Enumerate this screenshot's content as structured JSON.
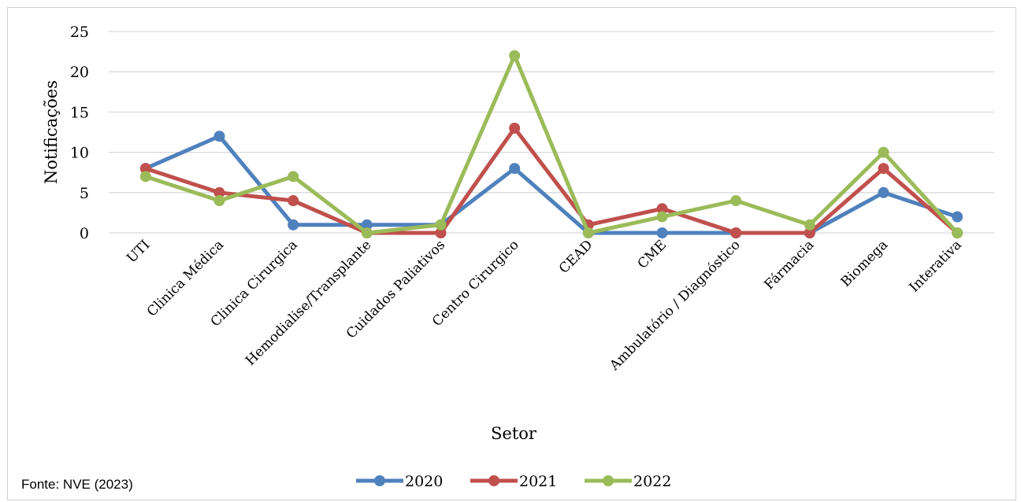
{
  "source_note": "Fonte: NVE (2023)",
  "chart_data": {
    "type": "line",
    "xlabel": "Setor",
    "ylabel": "Notificações",
    "ylim": [
      0,
      25
    ],
    "yticks": [
      0,
      5,
      10,
      15,
      20,
      25
    ],
    "grid": true,
    "legend_position": "bottom",
    "categories": [
      "UTI",
      "Clinica Médica",
      "Clinica Cirurgica",
      "Hemodialise/Transplante",
      "Cuidados Paliativos",
      "Centro Cirurgico",
      "CEAD",
      "CME",
      "Ambulatório / Diagnóstico",
      "Fármacia",
      "Biomega",
      "Interativa"
    ],
    "series": [
      {
        "name": "2020",
        "color": "#4f81bd",
        "values": [
          8,
          12,
          1,
          1,
          1,
          8,
          0,
          0,
          0,
          0,
          5,
          2
        ]
      },
      {
        "name": "2021",
        "color": "#c0504d",
        "values": [
          8,
          5,
          4,
          0,
          0,
          13,
          1,
          3,
          0,
          0,
          8,
          0
        ]
      },
      {
        "name": "2022",
        "color": "#9bbb59",
        "values": [
          7,
          4,
          7,
          0,
          1,
          22,
          0,
          2,
          4,
          1,
          10,
          0
        ]
      }
    ]
  }
}
